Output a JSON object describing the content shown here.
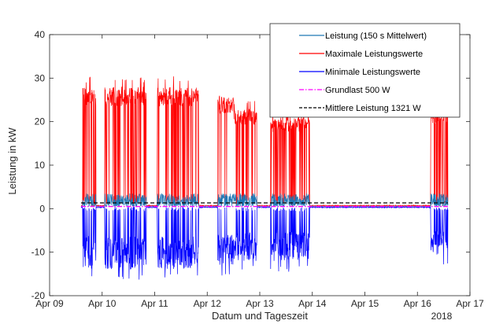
{
  "chart_data": {
    "type": "line",
    "title": "",
    "xlabel": "Datum und Tageszeit",
    "ylabel": "Leistung in kW",
    "x_year_label": "2018",
    "xlim": [
      9,
      17
    ],
    "ylim": [
      -20,
      40
    ],
    "x_ticks": [
      {
        "value": 9,
        "label": "Apr 09"
      },
      {
        "value": 10,
        "label": "Apr 10"
      },
      {
        "value": 11,
        "label": "Apr 11"
      },
      {
        "value": 12,
        "label": "Apr 12"
      },
      {
        "value": 13,
        "label": "Apr 13"
      },
      {
        "value": 14,
        "label": "Apr 14"
      },
      {
        "value": 15,
        "label": "Apr 15"
      },
      {
        "value": 16,
        "label": "Apr 16"
      },
      {
        "value": 17,
        "label": "Apr 17"
      }
    ],
    "y_ticks": [
      {
        "value": -20,
        "label": "-20"
      },
      {
        "value": -10,
        "label": "-10"
      },
      {
        "value": 0,
        "label": "0"
      },
      {
        "value": 10,
        "label": "10"
      },
      {
        "value": 20,
        "label": "20"
      },
      {
        "value": 30,
        "label": "30"
      },
      {
        "value": 40,
        "label": "40"
      }
    ],
    "grid": false,
    "legend_position": "top-right",
    "data_range": [
      9.6,
      16.58
    ],
    "active_periods": [
      {
        "start": 9.62,
        "end": 9.88,
        "max_hi": 28,
        "min_lo": -14
      },
      {
        "start": 10.05,
        "end": 10.84,
        "max_hi": 28,
        "min_lo": -14
      },
      {
        "start": 11.05,
        "end": 11.84,
        "max_hi": 28,
        "min_lo": -14
      },
      {
        "start": 12.2,
        "end": 12.5,
        "max_hi": 26,
        "min_lo": -13
      },
      {
        "start": 12.5,
        "end": 12.95,
        "max_hi": 23,
        "min_lo": -12
      },
      {
        "start": 13.2,
        "end": 13.95,
        "max_hi": 21,
        "min_lo": -12
      },
      {
        "start": 16.25,
        "end": 16.58,
        "max_hi": 23,
        "min_lo": -11
      }
    ],
    "series": [
      {
        "name": "Leistung (150 s Mittelwert)",
        "color": "#1f77b4",
        "style": "solid",
        "idle_value": 0.5,
        "active_range": [
          0.5,
          3.5
        ]
      },
      {
        "name": "Maximale Leistungswerte",
        "color": "#ff0000",
        "style": "solid",
        "idle_value": 0.6
      },
      {
        "name": "Minimale Leistungswerte",
        "color": "#0000ff",
        "style": "solid",
        "idle_value": 0.4
      },
      {
        "name": "Grundlast 500 W",
        "color": "#ff00ff",
        "style": "dashdot",
        "value": 0.5
      },
      {
        "name": "Mittlere Leistung 1321 W",
        "color": "#000000",
        "style": "dashed",
        "value": 1.321
      }
    ]
  }
}
